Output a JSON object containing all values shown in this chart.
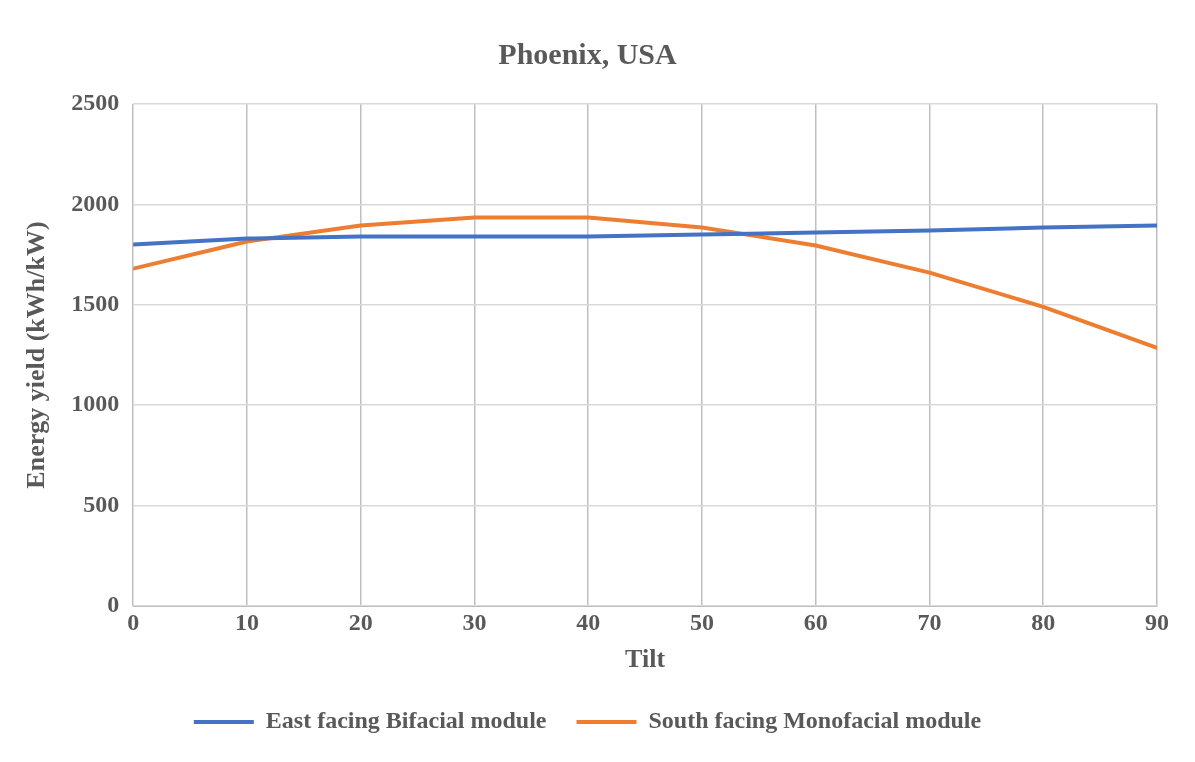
{
  "chart_data": {
    "type": "line",
    "title": "Phoenix, USA",
    "xlabel": "Tilt",
    "ylabel": "Energy yield (kWh/kW)",
    "x": [
      0,
      10,
      20,
      30,
      40,
      50,
      60,
      70,
      80,
      90
    ],
    "series": [
      {
        "name": "East facing Bifacial module",
        "color": "#4472c4",
        "values": [
          1800,
          1830,
          1840,
          1840,
          1840,
          1850,
          1860,
          1870,
          1885,
          1895
        ]
      },
      {
        "name": "South facing Monofacial module",
        "color": "#ed7d31",
        "values": [
          1680,
          1815,
          1895,
          1935,
          1935,
          1885,
          1795,
          1660,
          1490,
          1285
        ]
      }
    ],
    "xlim": [
      0,
      90
    ],
    "xticks": [
      0,
      10,
      20,
      30,
      40,
      50,
      60,
      70,
      80,
      90
    ],
    "ylim": [
      0,
      2500
    ],
    "yticks": [
      0,
      500,
      1000,
      1500,
      2000,
      2500
    ],
    "grid": true,
    "legend": "bottom",
    "marker": "none",
    "line_style": "solid"
  }
}
